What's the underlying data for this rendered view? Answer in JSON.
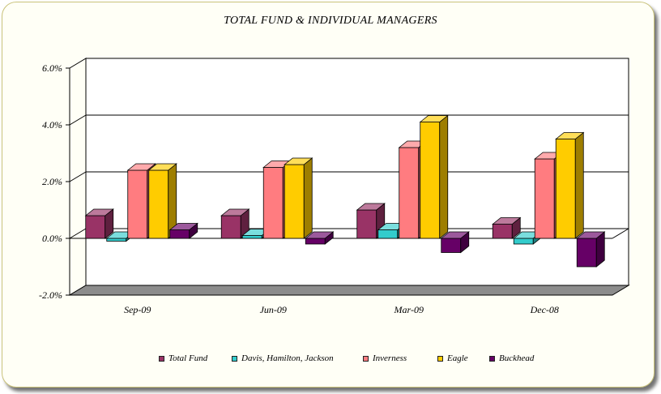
{
  "chart_data": {
    "type": "bar",
    "title": "TOTAL FUND  & INDIVIDUAL MANAGERS",
    "categories": [
      "Sep-09",
      "Jun-09",
      "Mar-09",
      "Dec-08"
    ],
    "series": [
      {
        "name": "Total Fund",
        "color": "#993366",
        "values": [
          0.8,
          0.8,
          1.0,
          0.5
        ]
      },
      {
        "name": "Davis, Hamilton, Jackson",
        "color": "#33cccc",
        "values": [
          -0.1,
          0.1,
          0.3,
          -0.2
        ]
      },
      {
        "name": "Inverness",
        "color": "#ff7c80",
        "values": [
          2.4,
          2.5,
          3.2,
          2.8
        ]
      },
      {
        "name": "Eagle",
        "color": "#ffcc00",
        "values": [
          2.4,
          2.6,
          4.1,
          3.5
        ]
      },
      {
        "name": "Buckhead",
        "color": "#660066",
        "values": [
          0.3,
          -0.2,
          -0.5,
          -1.0
        ]
      }
    ],
    "ylim": [
      -2.0,
      6.0
    ],
    "yticks": [
      "6.0%",
      "4.0%",
      "2.0%",
      "0.0%",
      "-2.0%"
    ],
    "grid": true,
    "three_d": true,
    "legend_position": "bottom"
  }
}
